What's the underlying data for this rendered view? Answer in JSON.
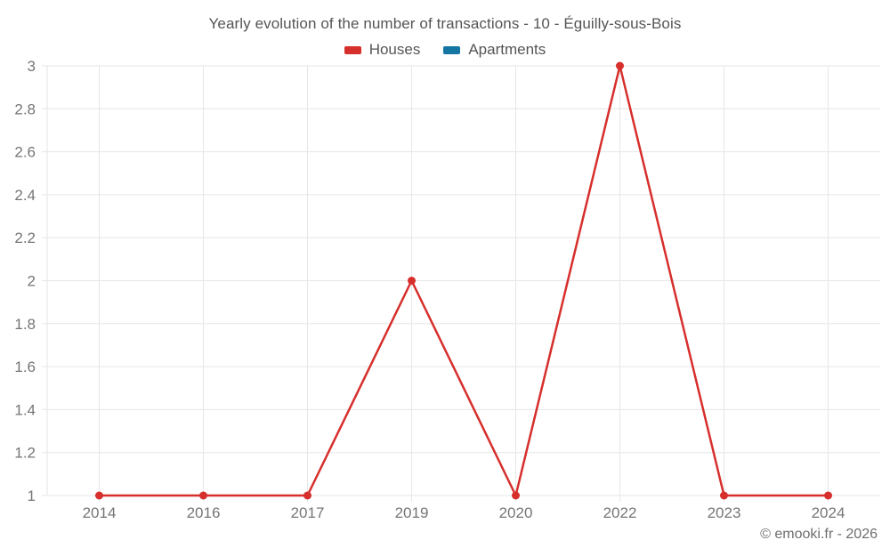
{
  "title": "Yearly evolution of the number of transactions - 10 - Éguilly-sous-Bois",
  "footer": {
    "text": "© emooki.fr - 2026"
  },
  "colors": {
    "houses_series": "#d62f2c",
    "apartments_series": "#1576a4",
    "gridline": "#e6e6e6",
    "axis_label_text": "#757575",
    "title_text": "#555555",
    "footer_text": "#6e6e6e"
  },
  "chart_data": {
    "type": "line",
    "title": "Yearly evolution of the number of transactions - 10 - Éguilly-sous-Bois",
    "categories": [
      "2014",
      "2016",
      "2017",
      "2019",
      "2020",
      "2022",
      "2023",
      "2024"
    ],
    "series": [
      {
        "name": "Houses",
        "color": "#d62f2c",
        "values": [
          1,
          1,
          1,
          2,
          1,
          3,
          1,
          1
        ]
      },
      {
        "name": "Apartments",
        "color": "#1576a4",
        "values": []
      }
    ],
    "xlabel": "",
    "ylabel": "",
    "ylim": [
      1,
      3
    ],
    "ytick_step": 0.2,
    "yticks": [
      1,
      1.2,
      1.4,
      1.6,
      1.8,
      2,
      2.2,
      2.4,
      2.6,
      2.8,
      3
    ],
    "grid": true,
    "legend_position": "top",
    "marker": "circle"
  }
}
